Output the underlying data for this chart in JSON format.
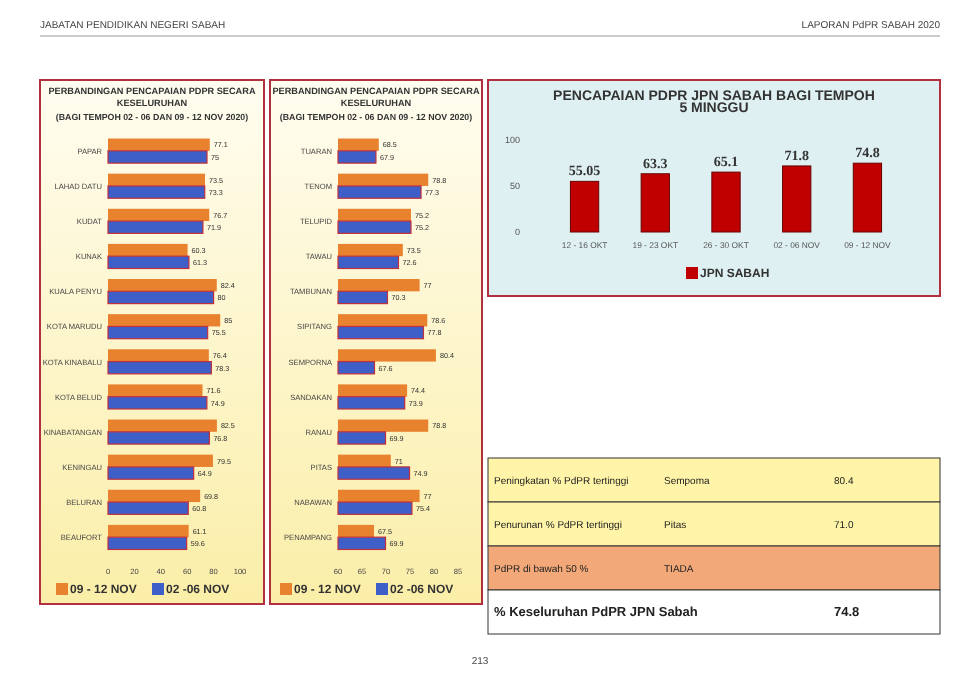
{
  "chart_data": [
    {
      "type": "bar",
      "orientation": "horizontal",
      "title": "PERBANDINGAN PENCAPAIAN PDPR SECARA KESELURUHAN",
      "subtitle": "(BAGI TEMPOH 02 - 06 DAN 09 - 12 NOV 2020)",
      "categories": [
        "PAPAR",
        "LAHAD DATU",
        "KUDAT",
        "KUNAK",
        "KUALA PENYU",
        "KOTA MARUDU",
        "KOTA KINABALU",
        "KOTA BELUD",
        "KINABATANGAN",
        "KENINGAU",
        "BELURAN",
        "BEAUFORT"
      ],
      "series": [
        {
          "name": "09 - 12 NOV",
          "color": "#e8822e",
          "values": [
            77.1,
            73.5,
            76.7,
            60.3,
            82.4,
            85,
            76.4,
            71.6,
            82.5,
            79.5,
            69.8,
            61.1
          ]
        },
        {
          "name": "02 -06 NOV",
          "color": "#3f5fc8",
          "values": [
            75,
            73.3,
            71.9,
            61.3,
            80,
            75.5,
            78.3,
            74.9,
            76.8,
            64.9,
            60.8,
            59.6
          ]
        }
      ],
      "xlim": [
        0,
        100
      ],
      "xticks": [
        0,
        20,
        40,
        60,
        80,
        100
      ],
      "data_labels": true,
      "legend": "bottom"
    },
    {
      "type": "bar",
      "orientation": "horizontal",
      "title": "PERBANDINGAN PENCAPAIAN PDPR SECARA KESELURUHAN",
      "subtitle": "(BAGI TEMPOH 02 - 06 DAN 09 - 12 NOV 2020)",
      "categories": [
        "TUARAN",
        "TENOM",
        "TELUPID",
        "TAWAU",
        "TAMBUNAN",
        "SIPITANG",
        "SEMPORNA",
        "SANDAKAN",
        "RANAU",
        "PITAS",
        "NABAWAN",
        "PENAMPANG"
      ],
      "series": [
        {
          "name": "09 - 12 NOV",
          "color": "#e8822e",
          "values": [
            68.5,
            78.8,
            75.2,
            73.5,
            77,
            78.6,
            80.4,
            74.4,
            78.8,
            71,
            77,
            67.5
          ]
        },
        {
          "name": "02 -06 NOV",
          "color": "#3f5fc8",
          "values": [
            67.9,
            77.3,
            75.2,
            72.6,
            70.3,
            77.8,
            67.6,
            73.9,
            69.9,
            74.9,
            75.4,
            69.9
          ]
        }
      ],
      "xlim": [
        60,
        85
      ],
      "xticks": [
        60,
        65,
        70,
        75,
        80,
        85
      ],
      "data_labels": true,
      "legend": "bottom"
    },
    {
      "type": "bar",
      "title": "PENCAPAIAN PDPR JPN SABAH BAGI TEMPOH 5 MINGGU",
      "categories": [
        "12 - 16 OKT",
        "19 - 23 OKT",
        "26 - 30 OKT",
        "02 - 06 NOV",
        "09 - 12 NOV"
      ],
      "series": [
        {
          "name": "JPN SABAH",
          "color": "#c00000",
          "values": [
            55.05,
            63.3,
            65.1,
            71.8,
            74.8
          ]
        }
      ],
      "ylim": [
        0,
        100
      ],
      "yticks": [
        0,
        50,
        100
      ],
      "data_labels": true,
      "legend": "bottom"
    },
    {
      "type": "other",
      "annotations": [
        "JABATAN PENDIDIKAN NEGERI SABAH",
        "LAPORAN PdPR SABAH 2020",
        "Peningkatan % PdPR tertinggi",
        "Sempoma",
        "80.4",
        "Penurunan % PdPR tertinggi",
        "Pitas",
        "71.0",
        "PdPR di bawah 50 %",
        "TIADA",
        "% Keseluruhan PdPR JPN Sabah",
        "74.8",
        "213"
      ]
    }
  ]
}
